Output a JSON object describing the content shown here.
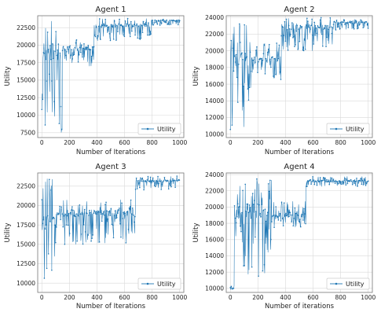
{
  "chart_data": [
    {
      "type": "line",
      "title": "Agent 1",
      "xlabel": "Number of Iterations",
      "ylabel": "Utility",
      "xlim": [
        -30,
        1030
      ],
      "ylim": [
        6800,
        24200
      ],
      "xticks": [
        0,
        200,
        400,
        600,
        800,
        1000
      ],
      "yticks": [
        7500,
        10000,
        12500,
        15000,
        17500,
        20000,
        22500
      ],
      "grid": true,
      "legend": {
        "placement": "bottom-right",
        "entries": [
          "Utility"
        ]
      },
      "series": [
        {
          "name": "Utility",
          "color": "#1f77b4",
          "marker": "dot",
          "phases": [
            {
              "x": [
                0,
                150
              ],
              "low": 7500,
              "high": 23500,
              "base": 19000
            },
            {
              "x": [
                150,
                380
              ],
              "low": 17000,
              "high": 21000,
              "base": 19500
            },
            {
              "x": [
                380,
                800
              ],
              "low": 20500,
              "high": 23800,
              "base": 22800
            },
            {
              "x": [
                800,
                1000
              ],
              "low": 22800,
              "high": 23700,
              "base": 23500
            }
          ]
        }
      ]
    },
    {
      "type": "line",
      "title": "Agent 2",
      "xlabel": "Number of Iterations",
      "ylabel": "Utility",
      "xlim": [
        -30,
        1030
      ],
      "ylim": [
        9600,
        24200
      ],
      "xticks": [
        0,
        200,
        400,
        600,
        800,
        1000
      ],
      "yticks": [
        10000,
        12000,
        14000,
        16000,
        18000,
        20000,
        22000,
        24000
      ],
      "grid": true,
      "legend": {
        "placement": "bottom-right",
        "entries": [
          "Utility"
        ]
      },
      "series": [
        {
          "name": "Utility",
          "color": "#1f77b4",
          "marker": "dot",
          "phases": [
            {
              "x": [
                0,
                150
              ],
              "low": 10500,
              "high": 23500,
              "base": 19000
            },
            {
              "x": [
                150,
                370
              ],
              "low": 16500,
              "high": 21000,
              "base": 19000
            },
            {
              "x": [
                370,
                750
              ],
              "low": 20000,
              "high": 24000,
              "base": 22800
            },
            {
              "x": [
                750,
                1000
              ],
              "low": 22500,
              "high": 23800,
              "base": 23400
            }
          ]
        }
      ]
    },
    {
      "type": "line",
      "title": "Agent 3",
      "xlabel": "Number of Iterations",
      "ylabel": "Utility",
      "xlim": [
        -30,
        1030
      ],
      "ylim": [
        8800,
        24200
      ],
      "xticks": [
        0,
        200,
        400,
        600,
        800,
        1000
      ],
      "yticks": [
        10000,
        12500,
        15000,
        17500,
        20000,
        22500
      ],
      "grid": true,
      "legend": {
        "placement": "bottom-right",
        "entries": [
          "Utility"
        ]
      },
      "series": [
        {
          "name": "Utility",
          "color": "#1f77b4",
          "marker": "dot",
          "phases": [
            {
              "x": [
                0,
                100
              ],
              "low": 9500,
              "high": 23500,
              "base": 18000
            },
            {
              "x": [
                100,
                680
              ],
              "low": 15000,
              "high": 20800,
              "base": 19000
            },
            {
              "x": [
                680,
                1000
              ],
              "low": 22000,
              "high": 23800,
              "base": 23200
            }
          ]
        }
      ]
    },
    {
      "type": "line",
      "title": "Agent 4",
      "xlabel": "Number of iterations",
      "ylabel": "Utility",
      "xlim": [
        -30,
        1030
      ],
      "ylim": [
        9500,
        24200
      ],
      "xticks": [
        0,
        200,
        400,
        600,
        800,
        1000
      ],
      "yticks": [
        10000,
        12000,
        14000,
        16000,
        18000,
        20000,
        22000,
        24000
      ],
      "grid": true,
      "legend": {
        "placement": "bottom-right",
        "entries": [
          "Utility"
        ]
      },
      "series": [
        {
          "name": "Utility",
          "color": "#1f77b4",
          "marker": "dot",
          "phases": [
            {
              "x": [
                0,
                30
              ],
              "low": 9800,
              "high": 10300,
              "base": 10000
            },
            {
              "x": [
                30,
                300
              ],
              "low": 11500,
              "high": 23800,
              "base": 19500
            },
            {
              "x": [
                300,
                550
              ],
              "low": 17500,
              "high": 20700,
              "base": 19000
            },
            {
              "x": [
                550,
                1000
              ],
              "low": 22500,
              "high": 23800,
              "base": 23200
            }
          ]
        }
      ]
    }
  ]
}
